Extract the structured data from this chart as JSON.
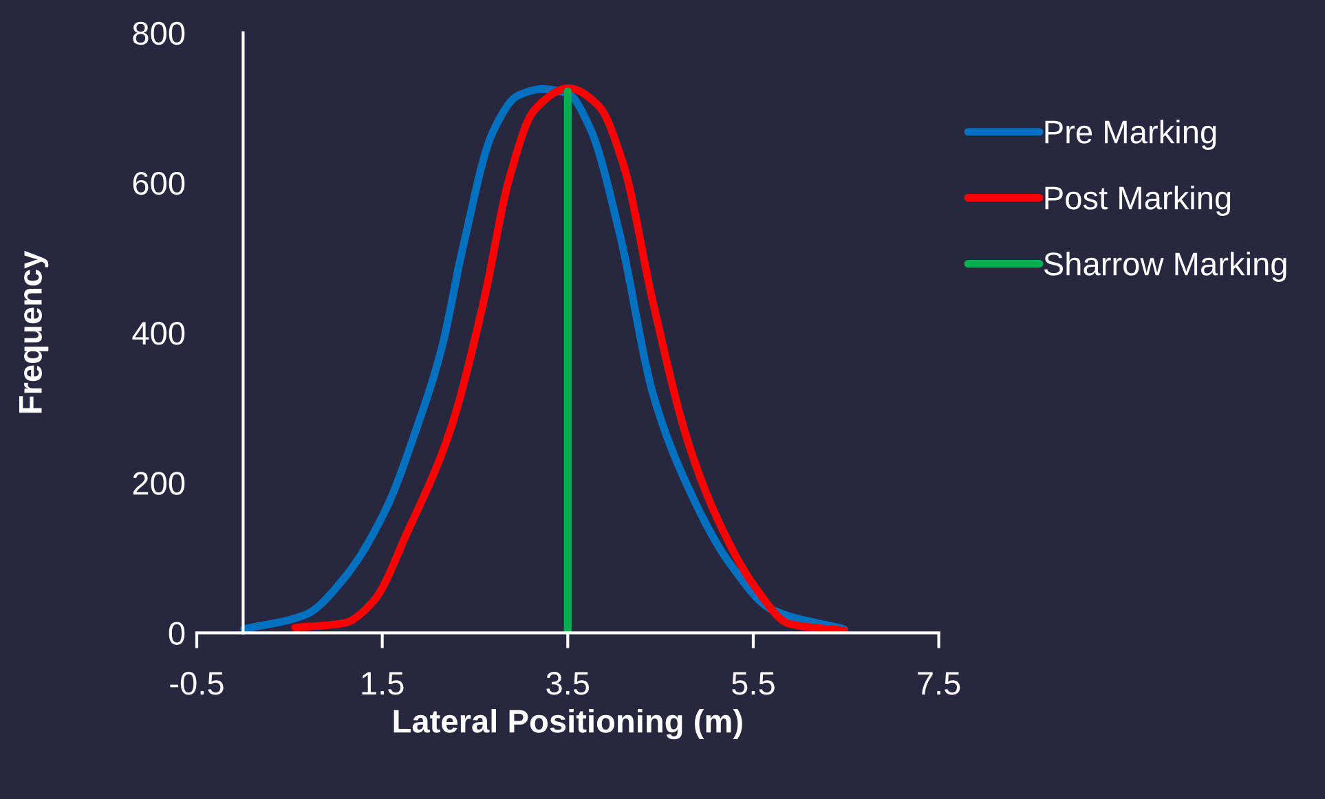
{
  "chart_data": {
    "type": "line",
    "xlabel": "Lateral Positioning (m)",
    "ylabel": "Frequency",
    "xlim": [
      -0.5,
      7.5
    ],
    "xticks": [
      -0.5,
      1.5,
      3.5,
      5.5,
      7.5
    ],
    "ylim": [
      0,
      800
    ],
    "yticks": [
      0,
      200,
      400,
      600,
      800
    ],
    "grid": false,
    "legend": "right",
    "marker": "none",
    "line_style": "solid",
    "series": [
      {
        "name": "Pre Marking",
        "color": "#0070c0",
        "x": [
          0.01,
          0.67,
          1.09,
          1.54,
          1.86,
          2.14,
          2.37,
          2.69,
          2.96,
          3.23,
          3.5,
          3.74,
          4.06,
          4.42,
          4.79,
          5.25,
          5.7,
          6.48
        ],
        "values": [
          5,
          24,
          73,
          165,
          269,
          379,
          514,
          667,
          716,
          725,
          719,
          673,
          532,
          318,
          196,
          92,
          31,
          5
        ]
      },
      {
        "name": "Post Marking",
        "color": "#ff0000",
        "x": [
          0.56,
          1.09,
          1.41,
          1.77,
          2.23,
          2.59,
          2.87,
          3.14,
          3.51,
          3.83,
          4.1,
          4.42,
          4.79,
          5.11,
          5.52,
          5.89,
          6.48
        ],
        "values": [
          7,
          13,
          43,
          134,
          269,
          440,
          606,
          697,
          726,
          703,
          624,
          440,
          257,
          153,
          61,
          12,
          3
        ]
      },
      {
        "name": "Sharrow Marking",
        "color": "#00b050",
        "x": [
          3.5,
          3.5
        ],
        "values": [
          0,
          722
        ]
      }
    ]
  }
}
